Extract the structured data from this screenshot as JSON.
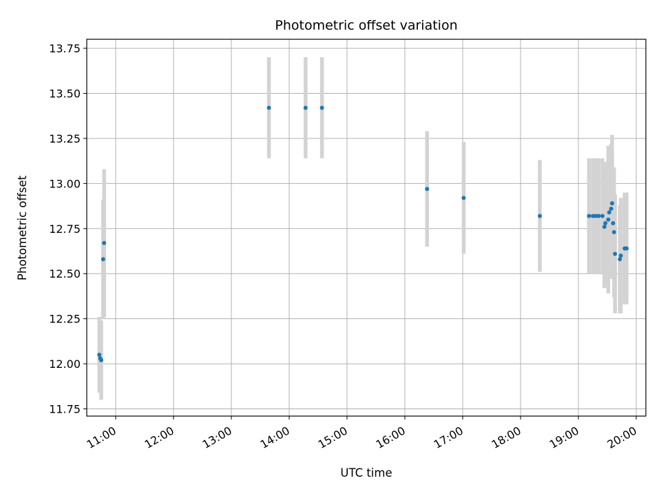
{
  "chart_data": {
    "type": "scatter",
    "title": "Photometric offset variation",
    "xlabel": "UTC time",
    "ylabel": "Photometric offset",
    "x_unit": "hours (UTC)",
    "xlim": [
      "10:30",
      "20:10"
    ],
    "ylim": [
      11.71,
      13.8
    ],
    "x_ticks": [
      "11:00",
      "12:00",
      "13:00",
      "14:00",
      "15:00",
      "16:00",
      "17:00",
      "18:00",
      "19:00",
      "20:00"
    ],
    "y_ticks": [
      "11.75",
      "12.00",
      "12.25",
      "12.50",
      "12.75",
      "13.00",
      "13.25",
      "13.50",
      "13.75"
    ],
    "grid": true,
    "colors": {
      "points": "#1f77b4",
      "errorbars": "#d3d3d3"
    },
    "points": [
      {
        "x": "10:43",
        "y": 12.05,
        "err": 0.21
      },
      {
        "x": "10:44",
        "y": 12.03,
        "err": 0.19
      },
      {
        "x": "10:45",
        "y": 12.02,
        "err": 0.22
      },
      {
        "x": "10:47",
        "y": 12.58,
        "err": 0.33
      },
      {
        "x": "10:48",
        "y": 12.67,
        "err": 0.41
      },
      {
        "x": "13:39",
        "y": 13.42,
        "err": 0.28
      },
      {
        "x": "14:17",
        "y": 13.42,
        "err": 0.28
      },
      {
        "x": "14:34",
        "y": 13.42,
        "err": 0.28
      },
      {
        "x": "16:23",
        "y": 12.97,
        "err": 0.32
      },
      {
        "x": "17:01",
        "y": 12.92,
        "err": 0.31
      },
      {
        "x": "18:20",
        "y": 12.82,
        "err": 0.31
      },
      {
        "x": "19:11",
        "y": 12.82,
        "err": 0.32
      },
      {
        "x": "19:15",
        "y": 12.82,
        "err": 0.32
      },
      {
        "x": "19:18",
        "y": 12.82,
        "err": 0.32
      },
      {
        "x": "19:21",
        "y": 12.82,
        "err": 0.32
      },
      {
        "x": "19:25",
        "y": 12.82,
        "err": 0.32
      },
      {
        "x": "19:27",
        "y": 12.76,
        "err": 0.34
      },
      {
        "x": "19:28",
        "y": 12.78,
        "err": 0.34
      },
      {
        "x": "19:31",
        "y": 12.8,
        "err": 0.41
      },
      {
        "x": "19:32",
        "y": 12.84,
        "err": 0.37
      },
      {
        "x": "19:34",
        "y": 12.86,
        "err": 0.36
      },
      {
        "x": "19:35",
        "y": 12.89,
        "err": 0.38
      },
      {
        "x": "19:36",
        "y": 12.78,
        "err": 0.31
      },
      {
        "x": "19:37",
        "y": 12.73,
        "err": 0.36
      },
      {
        "x": "19:38",
        "y": 12.61,
        "err": 0.33
      },
      {
        "x": "19:43",
        "y": 12.58,
        "err": 0.3
      },
      {
        "x": "19:44",
        "y": 12.6,
        "err": 0.32
      },
      {
        "x": "19:48",
        "y": 12.64,
        "err": 0.31
      },
      {
        "x": "19:50",
        "y": 12.64,
        "err": 0.31
      }
    ]
  }
}
